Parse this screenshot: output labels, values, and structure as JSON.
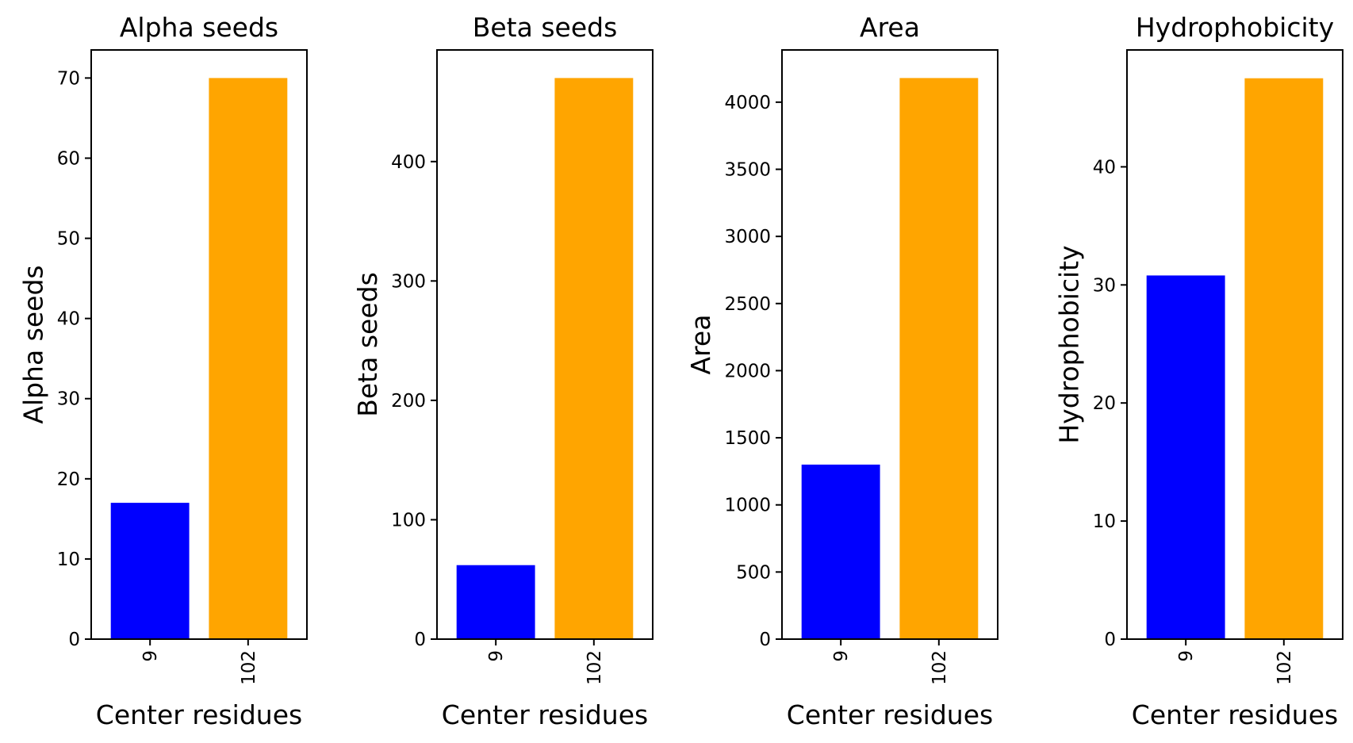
{
  "chart_data": [
    {
      "type": "bar",
      "title": "Alpha seeds",
      "xlabel": "Center residues",
      "ylabel": "Alpha seeds",
      "categories": [
        "9",
        "102"
      ],
      "values": [
        17,
        70
      ],
      "colors": [
        "#0000ff",
        "#ffa500"
      ],
      "ylim": [
        0,
        73.5
      ],
      "yticks": [
        0,
        10,
        20,
        30,
        40,
        50,
        60,
        70
      ],
      "grid": false
    },
    {
      "type": "bar",
      "title": "Beta seeds",
      "xlabel": "Center residues",
      "ylabel": "Beta seeds",
      "categories": [
        "9",
        "102"
      ],
      "values": [
        62,
        470
      ],
      "colors": [
        "#0000ff",
        "#ffa500"
      ],
      "ylim": [
        0,
        493.5
      ],
      "yticks": [
        0,
        100,
        200,
        300,
        400
      ],
      "grid": false
    },
    {
      "type": "bar",
      "title": "Area",
      "xlabel": "Center residues",
      "ylabel": "Area",
      "categories": [
        "9",
        "102"
      ],
      "values": [
        1300,
        4180
      ],
      "colors": [
        "#0000ff",
        "#ffa500"
      ],
      "ylim": [
        0,
        4389
      ],
      "yticks": [
        0,
        500,
        1000,
        1500,
        2000,
        2500,
        3000,
        3500,
        4000
      ],
      "grid": false
    },
    {
      "type": "bar",
      "title": "Hydrophobicity",
      "xlabel": "Center residues",
      "ylabel": "Hydrophobicity",
      "categories": [
        "9",
        "102"
      ],
      "values": [
        30.8,
        47.5
      ],
      "colors": [
        "#0000ff",
        "#ffa500"
      ],
      "ylim": [
        0,
        49.9
      ],
      "yticks": [
        0,
        10,
        20,
        30,
        40
      ],
      "grid": false
    }
  ]
}
